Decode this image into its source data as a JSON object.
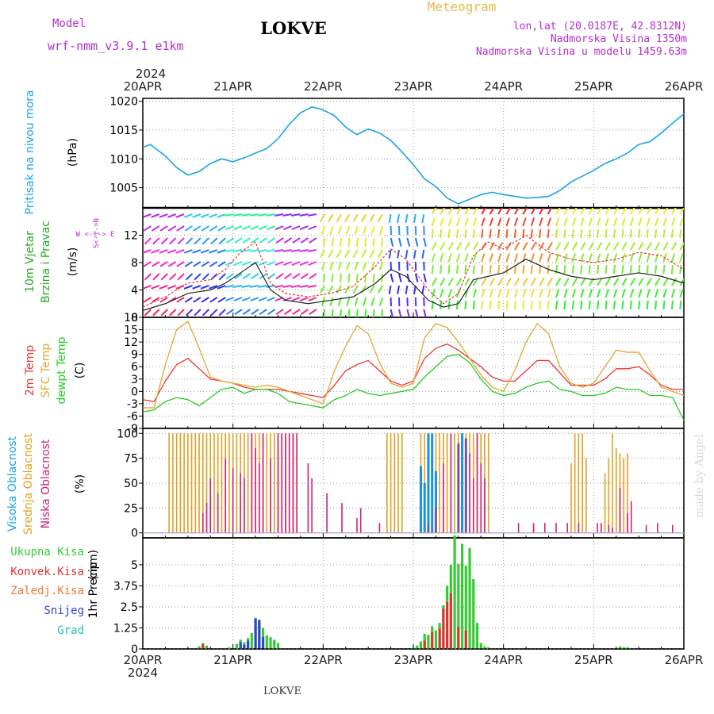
{
  "header": {
    "model_label": "Model",
    "model_name": "wrf-nmm_v3.9.1 e1km",
    "station": "LOKVE",
    "app_title": "Meteogram",
    "coords": "lon,lat (20.0187E, 42.8312N)",
    "altitude": "Nadmorska Visina 1350m",
    "model_altitude": "Nadmorska Visina u modelu 1459.63m",
    "footer_station": "LOKVE",
    "signature": "made by Angel"
  },
  "time_axis": {
    "year": "2024",
    "labels": [
      "20APR",
      "21APR",
      "22APR",
      "23APR",
      "24APR",
      "25APR",
      "26APR"
    ]
  },
  "panel_labels": {
    "pressure": {
      "name": "Pritisak na nivou mora",
      "unit": "(hPa)"
    },
    "wind": {
      "name1": "10m Vjetar",
      "name2": "Brzina i Pravac",
      "unit": "(m/s)",
      "compass": "W  <-|->  E",
      "compass_v": "S<-|->N"
    },
    "temp": {
      "name1": "2m Temp",
      "name2": "SFC Temp",
      "name3": "dewpt Temp",
      "unit": "(C)"
    },
    "cloud": {
      "name1": "Visoka Oblacnost",
      "name2": "Srednja Oblacnost",
      "name3": "Niska Oblacnost",
      "unit": "(%)"
    },
    "precip": {
      "name": "1hr Precip",
      "unit": "(mm)",
      "legend": [
        "Ukupna Kisa",
        "Konvek.Kisa",
        "Zaledj.Kisa",
        "Snijeg",
        "Grad"
      ]
    }
  },
  "colors": {
    "pressure": "#1aa3e8",
    "temp2m": "#ee3333",
    "sfc": "#e0a830",
    "dewpt": "#22cc22",
    "cloud_high": "#1a90e0",
    "cloud_mid": "#e0a020",
    "cloud_low": "#cc2277",
    "rain_total": "#33cc33",
    "rain_conv": "#dd3333",
    "rain_frz": "#ee7733",
    "snow": "#3344cc",
    "hail": "#22bbbb",
    "magenta_text": "#b030c8",
    "title_orange": "#e8b84a"
  },
  "chart_data": [
    {
      "type": "line",
      "panel": "pressure",
      "ylabel": "(hPa)",
      "ylim": [
        1001.5,
        1020.5
      ],
      "yticks": [
        1005,
        1010,
        1015,
        1020
      ],
      "x_hours": [
        0,
        2,
        4,
        6,
        9,
        12,
        15,
        18,
        21,
        24,
        27,
        30,
        33,
        36,
        39,
        42,
        45,
        48,
        51,
        54,
        57,
        60,
        63,
        66,
        69,
        72,
        75,
        78,
        81,
        84,
        87,
        90,
        93,
        96,
        99,
        102,
        105,
        108,
        111,
        114,
        117,
        120,
        123,
        126,
        129,
        132,
        135,
        138,
        141,
        144
      ],
      "values": [
        1012,
        1012.5,
        1011.5,
        1010.5,
        1008.5,
        1007.2,
        1007.8,
        1009.2,
        1010,
        1009.5,
        1010.2,
        1011,
        1011.8,
        1013.5,
        1016,
        1018,
        1019,
        1018.5,
        1017.5,
        1015.5,
        1014.2,
        1015.2,
        1014.5,
        1013.2,
        1011.2,
        1009,
        1006.5,
        1005.2,
        1003.2,
        1002.2,
        1003,
        1003.8,
        1004.2,
        1003.8,
        1003.5,
        1003.2,
        1003.3,
        1003.5,
        1004.5,
        1006,
        1007,
        1008,
        1009.2,
        1010,
        1011,
        1012.5,
        1013,
        1014.5,
        1016.2,
        1017.8
      ]
    },
    {
      "type": "line",
      "panel": "wind",
      "ylabel": "(m/s)",
      "ylim": [
        0,
        16
      ],
      "yticks": [
        0,
        4,
        8,
        12
      ],
      "series": [
        {
          "name": "",
          "color": "#222222",
          "x_hours": [
            0,
            6,
            12,
            18,
            22,
            26,
            30,
            34,
            38,
            44,
            50,
            56,
            62,
            66,
            70,
            76,
            80,
            84,
            88,
            92,
            96,
            102,
            108,
            114,
            120,
            126,
            132,
            138,
            144
          ],
          "values": [
            1,
            2,
            3.5,
            4,
            5,
            6.5,
            8,
            4,
            2.5,
            2,
            2.5,
            3,
            5,
            7,
            6,
            2.5,
            1.5,
            2,
            5.5,
            6,
            6.5,
            8.5,
            7,
            6,
            5.5,
            6,
            6.5,
            6,
            5
          ]
        },
        {
          "name": "",
          "color": "#ee3333",
          "x_hours": [
            0,
            6,
            12,
            18,
            22,
            26,
            30,
            34,
            38,
            44,
            50,
            56,
            62,
            66,
            70,
            76,
            80,
            84,
            88,
            92,
            96,
            102,
            108,
            114,
            120,
            126,
            132,
            138,
            144
          ],
          "values": [
            1.5,
            3,
            5,
            5.5,
            7,
            9.5,
            11,
            5,
            3.5,
            3,
            3.5,
            4.5,
            7.5,
            10,
            8.5,
            4,
            2,
            3.5,
            9,
            11,
            10,
            12,
            9.5,
            8.5,
            8,
            8.5,
            9.5,
            9,
            7
          ]
        }
      ]
    },
    {
      "type": "line",
      "panel": "temperature",
      "ylabel": "(C)",
      "ylim": [
        -9,
        18
      ],
      "yticks": [
        -9,
        -6,
        -3,
        0,
        3,
        6,
        9,
        12,
        15,
        18
      ],
      "x_hours": [
        0,
        3,
        6,
        9,
        12,
        15,
        18,
        21,
        24,
        27,
        30,
        33,
        36,
        39,
        42,
        45,
        48,
        51,
        54,
        57,
        60,
        63,
        66,
        69,
        72,
        75,
        78,
        81,
        84,
        87,
        90,
        93,
        96,
        99,
        102,
        105,
        108,
        111,
        114,
        117,
        120,
        123,
        126,
        129,
        132,
        135,
        138,
        141,
        144
      ],
      "series": [
        {
          "name": "2m Temp",
          "color": "#ee3333",
          "values": [
            -2,
            -2.5,
            2.5,
            6.5,
            8,
            5.5,
            3,
            2.5,
            2,
            1,
            0.5,
            0.5,
            0.5,
            0,
            -0.5,
            -1,
            -1.5,
            1.5,
            5,
            6.5,
            7.5,
            5,
            2.5,
            1.5,
            2.5,
            8,
            10.5,
            11.5,
            10,
            8,
            6,
            3.5,
            2.5,
            2.5,
            5,
            7.5,
            7.5,
            4.5,
            1.5,
            1.5,
            1.5,
            3,
            5.5,
            5.5,
            6,
            4,
            1.5,
            0.5,
            0.5
          ]
        },
        {
          "name": "SFC Temp",
          "color": "#e0a830",
          "values": [
            -4,
            -4,
            6.5,
            15,
            17,
            10.5,
            3.5,
            2.5,
            2,
            1.5,
            1,
            1.5,
            1,
            0,
            -1,
            -2,
            -3,
            5,
            11,
            16,
            14,
            7,
            2,
            1,
            2,
            13,
            16.5,
            15.5,
            12,
            8,
            4,
            1,
            0,
            5,
            12,
            16.5,
            14,
            6,
            2,
            1,
            2,
            6,
            10,
            9.5,
            9.5,
            5,
            1,
            0,
            -1
          ]
        },
        {
          "name": "dewpt Temp",
          "color": "#22cc22",
          "values": [
            -5,
            -4.5,
            -2.5,
            -1.5,
            -2,
            -3.5,
            -1.5,
            0.5,
            1,
            -0.5,
            0.5,
            0.5,
            -0.5,
            -2.5,
            -3,
            -3.5,
            -4,
            -2,
            -1,
            0.5,
            -0.5,
            -1,
            -0.5,
            0,
            0.5,
            3.5,
            6,
            8.5,
            9,
            7,
            3,
            0,
            -1,
            -0.5,
            1,
            2,
            2.5,
            0.5,
            0,
            -1,
            -1,
            -0.5,
            1,
            0.5,
            0.5,
            -1,
            -1,
            -1.5,
            -7
          ]
        }
      ]
    },
    {
      "type": "bar",
      "panel": "cloud",
      "ylabel": "(%)",
      "ylim": [
        -5,
        105
      ],
      "yticks": [
        0,
        25,
        50,
        75,
        100
      ],
      "series": [
        {
          "name": "Srednja Oblacnost",
          "color": "#e0a020",
          "x_hours": [
            7,
            8,
            9,
            10,
            11,
            12,
            13,
            14,
            15,
            16,
            17,
            18,
            19,
            20,
            21,
            22,
            23,
            24,
            25,
            26,
            27,
            28,
            29,
            30,
            31,
            32,
            33,
            34,
            35,
            36,
            37,
            38,
            39,
            40,
            41,
            65,
            66,
            67,
            68,
            69,
            74,
            75,
            76,
            77,
            78,
            79,
            80,
            81,
            82,
            83,
            84,
            85,
            86,
            87,
            88,
            89,
            90,
            91,
            92,
            114,
            115,
            116,
            117,
            118,
            123,
            124,
            125,
            126,
            127,
            128,
            129
          ],
          "values": [
            100,
            100,
            100,
            100,
            100,
            100,
            100,
            100,
            100,
            100,
            100,
            100,
            100,
            100,
            100,
            100,
            100,
            100,
            100,
            100,
            100,
            100,
            100,
            100,
            100,
            100,
            100,
            100,
            100,
            100,
            100,
            100,
            100,
            100,
            100,
            100,
            100,
            100,
            100,
            100,
            100,
            100,
            100,
            100,
            100,
            100,
            100,
            100,
            100,
            100,
            100,
            100,
            100,
            100,
            100,
            100,
            100,
            100,
            100,
            70,
            100,
            100,
            100,
            75,
            60,
            75,
            100,
            85,
            80,
            75,
            80
          ]
        },
        {
          "name": "Visoka Oblacnost",
          "color": "#1a90e0",
          "x_hours": [
            74,
            75,
            76,
            77,
            78,
            84,
            85,
            86
          ],
          "values": [
            67,
            50,
            100,
            100,
            62,
            90,
            100,
            95
          ]
        },
        {
          "name": "Niska Oblacnost",
          "color": "#cc2277",
          "x_hours": [
            16,
            17,
            18,
            20,
            22,
            24,
            26,
            27,
            29,
            30,
            31,
            32,
            34,
            36,
            37,
            38,
            39,
            40,
            41,
            44,
            45,
            49,
            53,
            57,
            58,
            63,
            76,
            78,
            80,
            82,
            84,
            86,
            87,
            88,
            89,
            90,
            91,
            100,
            104,
            107,
            110,
            113,
            116,
            121,
            122,
            124,
            125,
            127,
            129,
            130,
            134,
            137,
            141
          ],
          "values": [
            20,
            30,
            55,
            40,
            75,
            65,
            60,
            55,
            100,
            85,
            70,
            100,
            75,
            100,
            100,
            100,
            100,
            100,
            100,
            70,
            55,
            40,
            30,
            15,
            25,
            10,
            8,
            25,
            70,
            100,
            90,
            95,
            80,
            55,
            100,
            70,
            55,
            10,
            10,
            10,
            10,
            10,
            10,
            10,
            10,
            8,
            5,
            45,
            20,
            32,
            8,
            10,
            8
          ]
        }
      ]
    },
    {
      "type": "bar",
      "panel": "precip",
      "ylabel": "1hr Precip (mm)",
      "ylim": [
        0,
        6.6
      ],
      "yticks": [
        0,
        1.25,
        2.5,
        3.75,
        5
      ],
      "series": [
        {
          "name": "Ukupna Kisa",
          "color": "#33cc33",
          "x_hours": [
            15,
            16,
            17,
            23,
            25,
            26,
            27,
            28,
            29,
            30,
            31,
            32,
            33,
            34,
            35,
            36,
            72,
            73,
            74,
            75,
            76,
            77,
            78,
            79,
            80,
            81,
            82,
            83,
            84,
            85,
            86,
            87,
            88,
            89,
            90,
            91,
            92,
            127,
            128,
            129
          ],
          "values": [
            0.15,
            0.35,
            0.2,
            0.1,
            0.3,
            0.55,
            0.4,
            0.65,
            0.95,
            1.85,
            1.75,
            1.25,
            0.8,
            0.7,
            0.55,
            0.35,
            0.1,
            0.2,
            0.45,
            0.9,
            0.85,
            1.35,
            1.1,
            1.55,
            2.6,
            3.75,
            5,
            6.75,
            5.05,
            6.25,
            4.95,
            6,
            4.15,
            1.55,
            0.35,
            0.15,
            0.1,
            0.15,
            0.1,
            0.1
          ]
        },
        {
          "name": "Snijeg",
          "color": "#3344cc",
          "x_hours": [
            26,
            27,
            28,
            30,
            31,
            32
          ],
          "values": [
            0.4,
            0.25,
            0.5,
            1.8,
            1.7,
            0.7
          ]
        },
        {
          "name": "Konvek.Kisa",
          "color": "#dd3333",
          "x_hours": [
            16,
            75,
            77,
            79,
            80,
            81,
            82,
            84,
            86
          ],
          "values": [
            0.3,
            0.5,
            1.0,
            1.2,
            2.4,
            2.8,
            3.3,
            1.3,
            1.1
          ]
        }
      ]
    }
  ]
}
